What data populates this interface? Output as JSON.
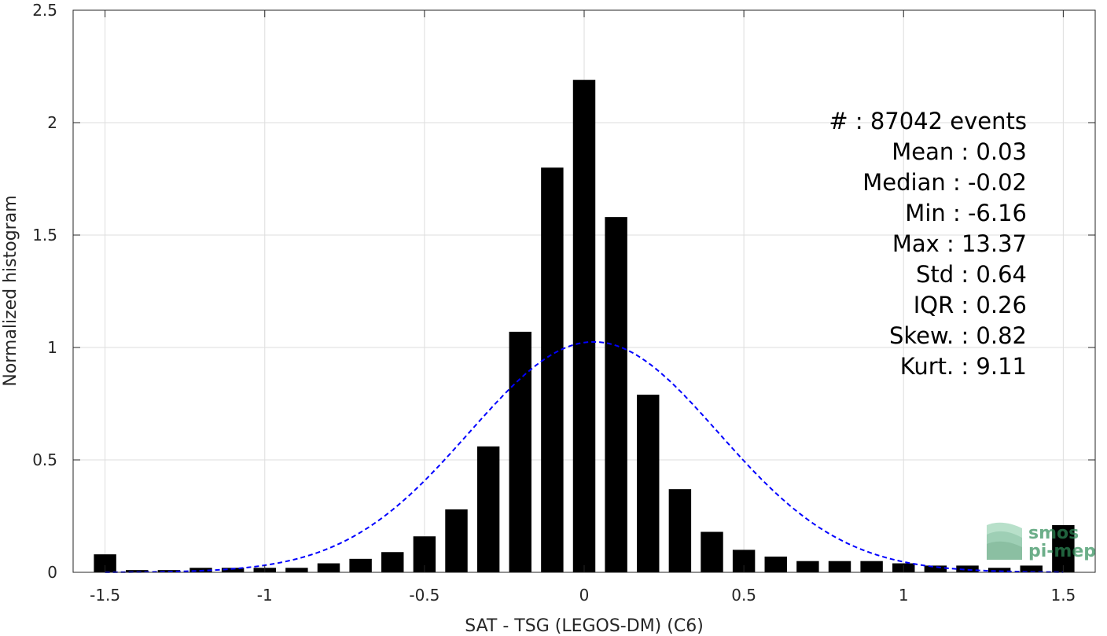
{
  "chart_data": {
    "type": "bar",
    "xlabel": "SAT - TSG (LEGOS-DM) (C6)",
    "ylabel": "Normalized histogram",
    "xlim": [
      -1.6,
      1.6
    ],
    "ylim": [
      0,
      2.5
    ],
    "xticks": [
      "-1.5",
      "-1",
      "-0.5",
      "0",
      "0.5",
      "1",
      "1.5"
    ],
    "yticks": [
      "0",
      "0.5",
      "1",
      "1.5",
      "2",
      "2.5"
    ],
    "grid": true,
    "bars": {
      "x": [
        -1.5,
        -1.4,
        -1.3,
        -1.2,
        -1.1,
        -1.0,
        -0.9,
        -0.8,
        -0.7,
        -0.6,
        -0.5,
        -0.4,
        -0.3,
        -0.2,
        -0.1,
        0.0,
        0.1,
        0.2,
        0.3,
        0.4,
        0.5,
        0.6,
        0.7,
        0.8,
        0.9,
        1.0,
        1.1,
        1.2,
        1.3,
        1.4,
        1.5
      ],
      "values": [
        0.08,
        0.01,
        0.01,
        0.02,
        0.02,
        0.02,
        0.02,
        0.04,
        0.06,
        0.09,
        0.16,
        0.28,
        0.56,
        1.07,
        1.8,
        2.19,
        1.58,
        0.79,
        0.37,
        0.18,
        0.1,
        0.07,
        0.05,
        0.05,
        0.05,
        0.04,
        0.03,
        0.03,
        0.02,
        0.03,
        0.21
      ],
      "color": "#000000"
    },
    "fit": {
      "type": "gaussian",
      "mean": 0.03,
      "std": 0.39,
      "peak": 1.025,
      "color": "#0000ff",
      "style": "dashed"
    },
    "stats": [
      "#  : 87042 events",
      "Mean : 0.03",
      "Median : -0.02",
      "Min : -6.16",
      "Max : 13.37",
      "Std : 0.64",
      "IQR : 0.26",
      "Skew. : 0.82",
      "Kurt. : 9.11"
    ]
  },
  "logo": {
    "line1": "smos",
    "line2": "pi-mep",
    "color": "#2e8b57"
  }
}
